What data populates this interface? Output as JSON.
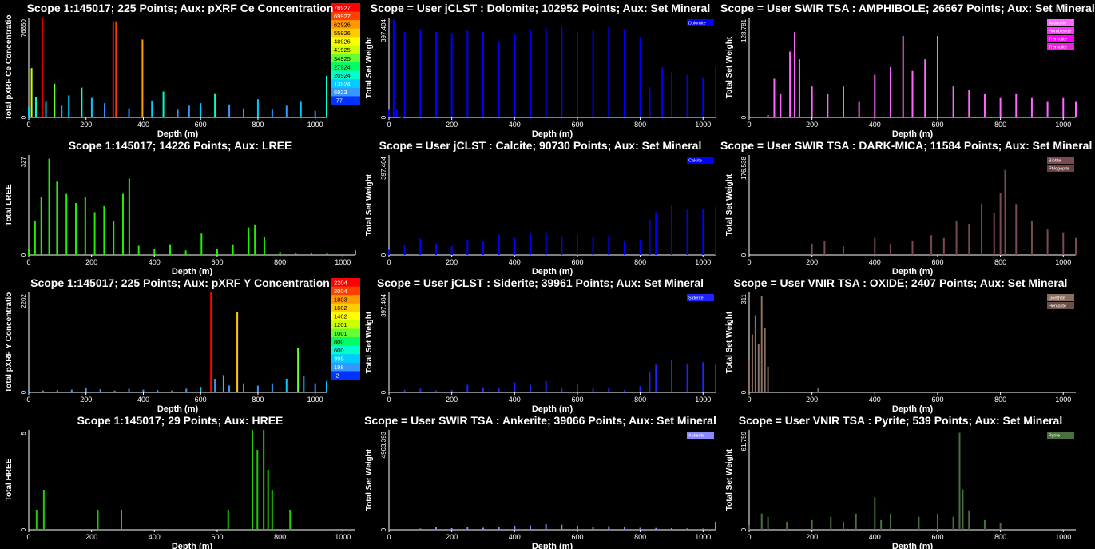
{
  "panels": [
    {
      "id": "ce",
      "title": "Scope 1:145017;  225 Points;  Aux: pXRF Ce Concentration",
      "ylabel": "Total pXRF Ce Concentratio",
      "ymax_label": "76850",
      "ymax": 76850,
      "xlabel": "Depth (m)",
      "xticks": [
        "0",
        "200",
        "400",
        "600",
        "800",
        "1000"
      ],
      "scale": {
        "entries": [
          {
            "label": "76927",
            "color": "#ff0000"
          },
          {
            "label": "69927",
            "color": "#ff4000"
          },
          {
            "label": "62926",
            "color": "#ff9900"
          },
          {
            "label": "55926",
            "color": "#ffcc00"
          },
          {
            "label": "48926",
            "color": "#ffff00"
          },
          {
            "label": "41925",
            "color": "#ccff00"
          },
          {
            "label": "34925",
            "color": "#66ff33"
          },
          {
            "label": "27924",
            "color": "#00ff66"
          },
          {
            "label": "20924",
            "color": "#00ffcc"
          },
          {
            "label": "13924",
            "color": "#00ccff"
          },
          {
            "label": "6923",
            "color": "#3399ff"
          },
          {
            "label": "-77",
            "color": "#0033ff"
          }
        ]
      }
    },
    {
      "id": "dolomite",
      "title": "Scope = User jCLST : Dolomite;  102952 Points;  Aux: Set Mineral",
      "ylabel": "Total Set Weight",
      "ymax_label": "397.404",
      "ymax": 397.404,
      "xlabel": "Depth (m)",
      "xticks": [
        "0",
        "200",
        "400",
        "600",
        "800",
        "1000"
      ],
      "legend": [
        {
          "label": "Dolomite",
          "color": "#0000ff"
        }
      ]
    },
    {
      "id": "amphibole",
      "title": "Scope = User SWIR TSA : AMPHIBOLE;  26667 Points;  Aux: Set Mineral",
      "ylabel": "Total Set Weight",
      "ymax_label": "128.781",
      "ymax": 128.781,
      "xlabel": "Depth (m)",
      "xticks": [
        "0",
        "200",
        "400",
        "600",
        "800",
        "1000"
      ],
      "legend": [
        {
          "label": "Actinolite",
          "color": "#ff66ff"
        },
        {
          "label": "Hornblende",
          "color": "#ff33ff"
        },
        {
          "label": "Tremolite",
          "color": "#ff00ff"
        },
        {
          "label": "Tremolite",
          "color": "#ee22dd"
        }
      ]
    },
    {
      "id": "lree",
      "title": "Scope 1:145017;  14226 Points;  Aux: LREE",
      "ylabel": "Total LREE",
      "ymax_label": "327",
      "ymax": 327,
      "xlabel": "Depth (m)",
      "xticks": [
        "0",
        "200",
        "400",
        "600",
        "800",
        "1000"
      ]
    },
    {
      "id": "calcite",
      "title": "Scope = User jCLST : Calcite;  90730 Points;  Aux: Set Mineral",
      "ylabel": "Total Set Weight",
      "ymax_label": "397.404",
      "ymax": 397.404,
      "xlabel": "Depth (m)",
      "xticks": [
        "0",
        "200",
        "400",
        "600",
        "800",
        "1000"
      ],
      "legend": [
        {
          "label": "Calcite",
          "color": "#0000ff"
        }
      ]
    },
    {
      "id": "darkmica",
      "title": "Scope = User SWIR TSA : DARK-MICA;  11584 Points;  Aux: Set Mineral",
      "ylabel": "Total Set Weight",
      "ymax_label": "176.538",
      "ymax": 176.538,
      "xlabel": "Depth (m)",
      "xticks": [
        "0",
        "200",
        "400",
        "600",
        "800",
        "1000"
      ],
      "legend": [
        {
          "label": "Biotite",
          "color": "#7a4a50"
        },
        {
          "label": "Phlogopite",
          "color": "#6a4040"
        }
      ]
    },
    {
      "id": "y",
      "title": "Scope 1:145017;  225 Points;  Aux: pXRF Y Concentration",
      "ylabel": "Total pXRF Y Concentratio",
      "ymax_label": "2202",
      "ymax": 2202,
      "xlabel": "Depth (m)",
      "xticks": [
        "0",
        "200",
        "400",
        "600",
        "800",
        "1000"
      ],
      "scale": {
        "entries": [
          {
            "label": "2204",
            "color": "#ff0000"
          },
          {
            "label": "2004",
            "color": "#ff4000"
          },
          {
            "label": "1803",
            "color": "#ff9900"
          },
          {
            "label": "1602",
            "color": "#ffcc00"
          },
          {
            "label": "1402",
            "color": "#ffff00"
          },
          {
            "label": "1201",
            "color": "#ccff00"
          },
          {
            "label": "1001",
            "color": "#66ff33"
          },
          {
            "label": "800",
            "color": "#00ff66"
          },
          {
            "label": "600",
            "color": "#00ffcc"
          },
          {
            "label": "399",
            "color": "#00ccff"
          },
          {
            "label": "198",
            "color": "#3399ff"
          },
          {
            "label": "-2",
            "color": "#0033ff"
          }
        ]
      }
    },
    {
      "id": "siderite",
      "title": "Scope = User jCLST : Siderite;  39961 Points;  Aux: Set Mineral",
      "ylabel": "Total Set Weight",
      "ymax_label": "397.404",
      "ymax": 397.404,
      "xlabel": "Depth (m)",
      "xticks": [
        "0",
        "200",
        "400",
        "600",
        "800",
        "1000"
      ],
      "legend": [
        {
          "label": "Siderite",
          "color": "#2222ff"
        }
      ]
    },
    {
      "id": "oxide",
      "title": "Scope = User VNIR TSA : OXIDE;  2407 Points;  Aux: Set Mineral",
      "ylabel": "Total Set Weight",
      "ymax_label": "311",
      "ymax": 311,
      "xlabel": "Depth (m)",
      "xticks": [
        "0",
        "200",
        "400",
        "600",
        "800",
        "1000"
      ],
      "legend": [
        {
          "label": "Goethite",
          "color": "#8a7060"
        },
        {
          "label": "Hematite",
          "color": "#6a5048"
        }
      ]
    },
    {
      "id": "hree",
      "title": "Scope 1:145017;  29 Points;  Aux: HREE",
      "ylabel": "Total HREE",
      "ymax_label": "5",
      "ymax": 5,
      "xlabel": "Depth (m)",
      "xticks": [
        "0",
        "200",
        "400",
        "600",
        "800",
        "1000"
      ]
    },
    {
      "id": "ankerite",
      "title": "Scope = User SWIR TSA : Ankerite;  39066 Points;  Aux: Set Mineral",
      "ylabel": "Total Set Weight",
      "ymax_label": "4963.393",
      "ymax": 4963.393,
      "xlabel": "Depth (m)",
      "xticks": [
        "0",
        "200",
        "400",
        "600",
        "800",
        "1000"
      ],
      "legend": [
        {
          "label": "Ankerite",
          "color": "#8888ff"
        }
      ]
    },
    {
      "id": "pyrite",
      "title": "Scope = User VNIR TSA : Pyrite;  539 Points;  Aux: Set Mineral",
      "ylabel": "Total Set Weight",
      "ymax_label": "61.759",
      "ymax": 61.759,
      "xlabel": "Depth (m)",
      "xticks": [
        "0",
        "200",
        "400",
        "600",
        "800",
        "1000"
      ],
      "legend": [
        {
          "label": "Pyrite",
          "color": "#4a7040"
        }
      ]
    }
  ],
  "chart_data": [
    {
      "type": "bar",
      "id": "ce",
      "xlabel": "Depth (m)",
      "ylabel": "Total pXRF Ce Concentratio",
      "xlim": [
        0,
        1040
      ],
      "ylim": [
        0,
        76850
      ],
      "x": [
        0,
        10,
        25,
        47,
        60,
        90,
        115,
        140,
        185,
        220,
        265,
        295,
        305,
        350,
        397,
        430,
        470,
        520,
        560,
        600,
        650,
        700,
        750,
        800,
        850,
        900,
        950,
        1000,
        1040
      ],
      "values": [
        8000,
        38000,
        16000,
        76850,
        12000,
        26000,
        9000,
        17000,
        23000,
        15000,
        11000,
        74000,
        74000,
        7000,
        60000,
        13000,
        20000,
        6000,
        9000,
        11000,
        18000,
        10000,
        7000,
        14000,
        6000,
        9000,
        12000,
        5000,
        32000
      ],
      "colors": [
        "#00ccff",
        "#ccff00",
        "#00ffcc",
        "#ff0000",
        "#00ccff",
        "#66ff33",
        "#3399ff",
        "#00ccff",
        "#00ffcc",
        "#00ccff",
        "#3399ff",
        "#ff0000",
        "#ff4000",
        "#3399ff",
        "#ff9900",
        "#00ccff",
        "#00ffcc",
        "#3399ff",
        "#3399ff",
        "#00ccff",
        "#00ffcc",
        "#3399ff",
        "#3399ff",
        "#00ccff",
        "#3399ff",
        "#3399ff",
        "#00ccff",
        "#3399ff",
        "#00ffcc"
      ]
    },
    {
      "type": "bar",
      "id": "dolomite",
      "xlabel": "Depth (m)",
      "ylabel": "Total Set Weight",
      "xlim": [
        0,
        1040
      ],
      "ylim": [
        0,
        397.404
      ],
      "x": [
        0,
        15,
        25,
        40,
        50,
        100,
        150,
        200,
        250,
        300,
        350,
        400,
        450,
        500,
        550,
        600,
        650,
        700,
        750,
        800,
        830,
        870,
        900,
        950,
        1000,
        1040
      ],
      "values": [
        30,
        390,
        30,
        0,
        340,
        350,
        340,
        335,
        345,
        340,
        300,
        330,
        350,
        355,
        360,
        340,
        345,
        360,
        350,
        320,
        120,
        200,
        180,
        170,
        160,
        200
      ],
      "colors": [
        "#0000ff"
      ]
    },
    {
      "type": "bar",
      "id": "amphibole",
      "xlabel": "Depth (m)",
      "ylabel": "Total Set Weight",
      "xlim": [
        0,
        1040
      ],
      "ylim": [
        0,
        128.781
      ],
      "x": [
        60,
        80,
        100,
        130,
        145,
        160,
        200,
        250,
        300,
        350,
        400,
        450,
        490,
        520,
        560,
        600,
        650,
        700,
        750,
        800,
        850,
        900,
        950,
        1000,
        1040
      ],
      "values": [
        3,
        50,
        30,
        85,
        110,
        75,
        40,
        30,
        40,
        20,
        55,
        65,
        105,
        60,
        75,
        105,
        40,
        35,
        30,
        25,
        30,
        25,
        20,
        25,
        20
      ],
      "colors": [
        "#ff66ff"
      ]
    },
    {
      "type": "bar",
      "id": "lree",
      "xlabel": "Depth (m)",
      "ylabel": "Total LREE",
      "xlim": [
        0,
        1040
      ],
      "ylim": [
        0,
        327
      ],
      "x": [
        0,
        20,
        40,
        65,
        90,
        120,
        150,
        180,
        210,
        240,
        270,
        300,
        320,
        350,
        400,
        450,
        500,
        550,
        600,
        650,
        700,
        720,
        750,
        800,
        850,
        900,
        950,
        1040
      ],
      "values": [
        20,
        110,
        190,
        315,
        240,
        200,
        170,
        190,
        140,
        160,
        110,
        200,
        250,
        30,
        20,
        35,
        15,
        70,
        20,
        35,
        90,
        100,
        60,
        10,
        8,
        5,
        5,
        15
      ],
      "colors": [
        "#22ee00"
      ]
    },
    {
      "type": "bar",
      "id": "calcite",
      "xlabel": "Depth (m)",
      "ylabel": "Total Set Weight",
      "xlim": [
        0,
        1040
      ],
      "ylim": [
        0,
        397.404
      ],
      "x": [
        0,
        50,
        100,
        150,
        200,
        250,
        300,
        350,
        400,
        450,
        500,
        550,
        600,
        650,
        700,
        750,
        800,
        830,
        850,
        900,
        950,
        1000,
        1040
      ],
      "values": [
        20,
        40,
        65,
        45,
        35,
        60,
        55,
        80,
        70,
        85,
        90,
        75,
        80,
        70,
        75,
        55,
        60,
        140,
        170,
        200,
        180,
        185,
        190
      ],
      "colors": [
        "#0000ff"
      ]
    },
    {
      "type": "bar",
      "id": "darkmica",
      "xlabel": "Depth (m)",
      "ylabel": "Total Set Weight",
      "xlim": [
        0,
        1040
      ],
      "ylim": [
        0,
        176.538
      ],
      "x": [
        200,
        240,
        300,
        400,
        450,
        520,
        580,
        620,
        660,
        700,
        740,
        780,
        800,
        815,
        850,
        900,
        950,
        1000,
        1040
      ],
      "values": [
        20,
        25,
        15,
        30,
        20,
        25,
        35,
        30,
        60,
        55,
        90,
        75,
        110,
        150,
        90,
        60,
        45,
        40,
        30
      ],
      "colors": [
        "#7a4a50"
      ]
    },
    {
      "type": "bar",
      "id": "y",
      "xlabel": "Depth (m)",
      "ylabel": "Total pXRF Y Concentratio",
      "xlim": [
        0,
        1040
      ],
      "ylim": [
        0,
        2202
      ],
      "x": [
        0,
        50,
        100,
        150,
        200,
        250,
        300,
        350,
        400,
        450,
        500,
        550,
        600,
        636,
        650,
        680,
        700,
        728,
        750,
        800,
        850,
        900,
        940,
        960,
        1000,
        1040
      ],
      "values": [
        60,
        40,
        50,
        60,
        90,
        70,
        40,
        80,
        60,
        50,
        40,
        80,
        120,
        2202,
        300,
        380,
        150,
        1780,
        200,
        150,
        200,
        300,
        980,
        350,
        200,
        250
      ],
      "colors": [
        "#3399ff",
        "#3399ff",
        "#3399ff",
        "#3399ff",
        "#3399ff",
        "#3399ff",
        "#3399ff",
        "#3399ff",
        "#3399ff",
        "#3399ff",
        "#3399ff",
        "#3399ff",
        "#00ccff",
        "#ff0000",
        "#3399ff",
        "#00ccff",
        "#3399ff",
        "#ffcc00",
        "#3399ff",
        "#3399ff",
        "#3399ff",
        "#00ccff",
        "#66ff33",
        "#00ccff",
        "#3399ff",
        "#00ccff"
      ]
    },
    {
      "type": "bar",
      "id": "siderite",
      "xlabel": "Depth (m)",
      "ylabel": "Total Set Weight",
      "xlim": [
        0,
        1040
      ],
      "ylim": [
        0,
        397.404
      ],
      "x": [
        0,
        50,
        100,
        150,
        200,
        250,
        300,
        350,
        400,
        450,
        500,
        550,
        600,
        650,
        700,
        750,
        800,
        830,
        850,
        900,
        950,
        1000,
        1040
      ],
      "values": [
        5,
        10,
        15,
        8,
        10,
        30,
        20,
        15,
        40,
        30,
        45,
        20,
        35,
        15,
        20,
        10,
        25,
        80,
        110,
        130,
        115,
        120,
        110
      ],
      "colors": [
        "#2222ff"
      ]
    },
    {
      "type": "bar",
      "id": "oxide",
      "xlabel": "Depth (m)",
      "ylabel": "Total Set Weight",
      "xlim": [
        0,
        1040
      ],
      "ylim": [
        0,
        311
      ],
      "x": [
        0,
        10,
        20,
        30,
        40,
        50,
        60,
        220
      ],
      "values": [
        100,
        180,
        240,
        150,
        300,
        200,
        80,
        15
      ],
      "colors": [
        "#8a7060"
      ]
    },
    {
      "type": "bar",
      "id": "hree",
      "xlabel": "Depth (m)",
      "ylabel": "Total HREE",
      "xlim": [
        0,
        1040
      ],
      "ylim": [
        0,
        5
      ],
      "x": [
        25,
        48,
        220,
        295,
        635,
        712,
        728,
        748,
        762,
        775,
        832
      ],
      "values": [
        1,
        2,
        1,
        1,
        1,
        5,
        4,
        5,
        3,
        2,
        1
      ],
      "colors": [
        "#22cc00"
      ]
    },
    {
      "type": "bar",
      "id": "ankerite",
      "xlabel": "Depth (m)",
      "ylabel": "Total Set Weight",
      "xlim": [
        0,
        1040
      ],
      "ylim": [
        0,
        4963.393
      ],
      "x": [
        0,
        100,
        150,
        200,
        250,
        300,
        350,
        400,
        450,
        500,
        550,
        600,
        650,
        700,
        750,
        800,
        850,
        900,
        950,
        1000,
        1040
      ],
      "values": [
        20,
        60,
        120,
        80,
        150,
        100,
        160,
        200,
        220,
        280,
        250,
        200,
        160,
        180,
        120,
        100,
        90,
        80,
        70,
        60,
        400
      ],
      "colors": [
        "#8888ff"
      ]
    },
    {
      "type": "bar",
      "id": "pyrite",
      "xlabel": "Depth (m)",
      "ylabel": "Total Set Weight",
      "xlim": [
        0,
        1040
      ],
      "ylim": [
        0,
        61.759
      ],
      "x": [
        0,
        40,
        60,
        120,
        200,
        260,
        300,
        340,
        400,
        420,
        450,
        540,
        600,
        650,
        670,
        680,
        700,
        750,
        800
      ],
      "values": [
        3,
        10,
        8,
        5,
        6,
        8,
        5,
        10,
        20,
        6,
        10,
        8,
        10,
        8,
        60,
        25,
        12,
        6,
        4
      ],
      "colors": [
        "#4a7040"
      ]
    }
  ]
}
